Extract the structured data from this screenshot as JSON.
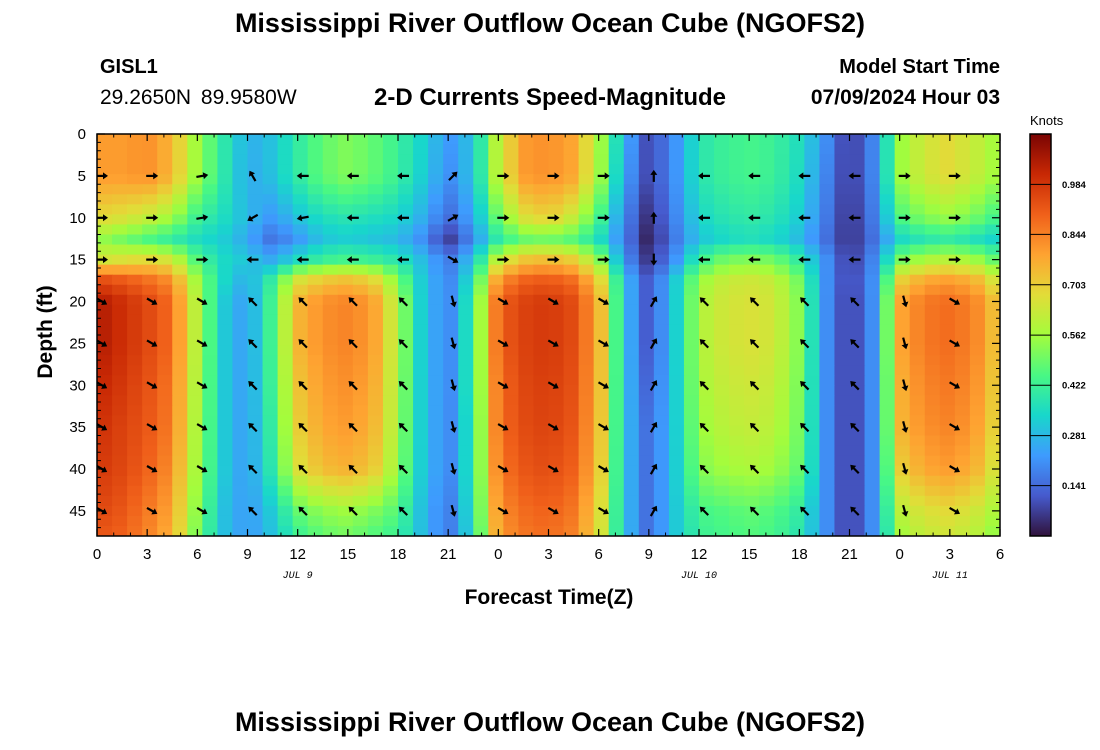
{
  "header": {
    "title": "Mississippi River Outflow Ocean Cube (NGOFS2)",
    "station_id": "GISL1",
    "station_coords": "29.2650N  89.9580W",
    "subtitle": "2-D Currents Speed-Magnitude",
    "model_start_label": "Model Start Time",
    "model_start_value": "07/09/2024 Hour 03"
  },
  "footer": {
    "title": "Mississippi River Outflow Ocean Cube (NGOFS2)"
  },
  "chart_data": {
    "type": "heatmap",
    "xlabel": "Forecast Time(Z)",
    "ylabel": "Depth (ft)",
    "xlim": [
      0,
      54
    ],
    "ylim": [
      0,
      48
    ],
    "y_inverted": true,
    "x_tick_positions": [
      0,
      3,
      6,
      9,
      12,
      15,
      18,
      21,
      24,
      27,
      30,
      33,
      36,
      39,
      42,
      45,
      48,
      51,
      54
    ],
    "x_tick_labels": [
      "0",
      "3",
      "6",
      "9",
      "12",
      "15",
      "18",
      "21",
      "0",
      "3",
      "6",
      "9",
      "12",
      "15",
      "18",
      "21",
      "0",
      "3",
      "6"
    ],
    "y_tick_values": [
      0,
      5,
      10,
      15,
      20,
      25,
      30,
      35,
      40,
      45
    ],
    "y_tick_labels": [
      "0",
      "5",
      "10",
      "15",
      "20",
      "25",
      "30",
      "35",
      "40",
      "45"
    ],
    "date_labels": [
      {
        "x": 12,
        "text": "JUL 9"
      },
      {
        "x": 36,
        "text": "JUL 10"
      },
      {
        "x": 51,
        "text": "JUL 11"
      }
    ],
    "colorbar": {
      "unit": "Knots",
      "min": 0.0,
      "max": 1.125,
      "tick_values": [
        0.141,
        0.281,
        0.422,
        0.562,
        0.703,
        0.844,
        0.984
      ],
      "tick_labels": [
        "0.141",
        "0.281",
        "0.422",
        "0.562",
        "0.703",
        "0.844",
        "0.984"
      ],
      "colormap": "turbo"
    },
    "speed_grid": {
      "time_hours": [
        0,
        1.5,
        3,
        4.5,
        6,
        7.5,
        9,
        10.5,
        12,
        13.5,
        15,
        16.5,
        18,
        19.5,
        21,
        22.5,
        24,
        25.5,
        27,
        28.5,
        30,
        31.5,
        33,
        34.5,
        36,
        37.5,
        39,
        40.5,
        42,
        43.5,
        45,
        46.5,
        48,
        49.5,
        51,
        52.5,
        54
      ],
      "depth_ft": [
        0,
        5,
        10,
        12.5,
        15,
        17.5,
        20,
        25,
        30,
        35,
        40,
        45,
        48
      ],
      "speed_knots": [
        [
          0.8,
          0.8,
          0.82,
          0.75,
          0.55,
          0.4,
          0.26,
          0.3,
          0.4,
          0.48,
          0.52,
          0.48,
          0.42,
          0.33,
          0.22,
          0.3,
          0.62,
          0.8,
          0.82,
          0.78,
          0.58,
          0.28,
          0.08,
          0.2,
          0.38,
          0.42,
          0.44,
          0.42,
          0.36,
          0.22,
          0.05,
          0.2,
          0.55,
          0.64,
          0.68,
          0.62,
          0.55
        ],
        [
          0.8,
          0.8,
          0.82,
          0.75,
          0.55,
          0.4,
          0.25,
          0.3,
          0.4,
          0.48,
          0.52,
          0.48,
          0.42,
          0.32,
          0.2,
          0.3,
          0.62,
          0.8,
          0.82,
          0.78,
          0.58,
          0.25,
          0.08,
          0.2,
          0.38,
          0.42,
          0.44,
          0.42,
          0.35,
          0.2,
          0.05,
          0.2,
          0.55,
          0.64,
          0.68,
          0.62,
          0.55
        ],
        [
          0.68,
          0.66,
          0.62,
          0.56,
          0.42,
          0.36,
          0.28,
          0.22,
          0.3,
          0.36,
          0.38,
          0.36,
          0.34,
          0.26,
          0.14,
          0.25,
          0.5,
          0.66,
          0.7,
          0.62,
          0.45,
          0.2,
          0.04,
          0.18,
          0.34,
          0.38,
          0.4,
          0.38,
          0.32,
          0.18,
          0.04,
          0.18,
          0.45,
          0.52,
          0.55,
          0.5,
          0.42
        ],
        [
          0.55,
          0.5,
          0.45,
          0.4,
          0.35,
          0.32,
          0.25,
          0.15,
          0.22,
          0.3,
          0.32,
          0.3,
          0.28,
          0.2,
          0.06,
          0.2,
          0.4,
          0.48,
          0.5,
          0.46,
          0.36,
          0.18,
          0.02,
          0.16,
          0.3,
          0.34,
          0.36,
          0.34,
          0.28,
          0.16,
          0.04,
          0.16,
          0.34,
          0.38,
          0.4,
          0.36,
          0.32
        ],
        [
          0.64,
          0.66,
          0.68,
          0.64,
          0.45,
          0.35,
          0.3,
          0.25,
          0.35,
          0.42,
          0.44,
          0.42,
          0.38,
          0.28,
          0.16,
          0.3,
          0.62,
          0.72,
          0.74,
          0.7,
          0.55,
          0.22,
          0.05,
          0.2,
          0.42,
          0.5,
          0.52,
          0.5,
          0.4,
          0.22,
          0.05,
          0.2,
          0.5,
          0.58,
          0.6,
          0.56,
          0.46
        ],
        [
          0.95,
          0.92,
          0.88,
          0.82,
          0.55,
          0.35,
          0.25,
          0.42,
          0.66,
          0.72,
          0.74,
          0.7,
          0.52,
          0.3,
          0.18,
          0.38,
          0.82,
          0.9,
          0.92,
          0.88,
          0.72,
          0.3,
          0.1,
          0.3,
          0.55,
          0.62,
          0.64,
          0.62,
          0.5,
          0.22,
          0.06,
          0.22,
          0.7,
          0.78,
          0.8,
          0.76,
          0.62
        ],
        [
          1.05,
          1.0,
          0.95,
          0.88,
          0.58,
          0.32,
          0.22,
          0.45,
          0.75,
          0.82,
          0.84,
          0.8,
          0.58,
          0.3,
          0.18,
          0.42,
          0.9,
          0.96,
          0.98,
          0.94,
          0.78,
          0.3,
          0.1,
          0.3,
          0.58,
          0.64,
          0.66,
          0.64,
          0.52,
          0.22,
          0.05,
          0.22,
          0.78,
          0.86,
          0.88,
          0.84,
          0.7
        ],
        [
          1.05,
          1.0,
          0.95,
          0.88,
          0.58,
          0.32,
          0.22,
          0.45,
          0.75,
          0.82,
          0.84,
          0.8,
          0.58,
          0.3,
          0.18,
          0.42,
          0.9,
          0.96,
          0.98,
          0.94,
          0.78,
          0.3,
          0.1,
          0.3,
          0.58,
          0.64,
          0.66,
          0.64,
          0.52,
          0.22,
          0.05,
          0.22,
          0.78,
          0.86,
          0.88,
          0.84,
          0.7
        ],
        [
          1.02,
          0.98,
          0.93,
          0.86,
          0.57,
          0.32,
          0.22,
          0.44,
          0.72,
          0.8,
          0.82,
          0.78,
          0.57,
          0.3,
          0.18,
          0.42,
          0.88,
          0.95,
          0.97,
          0.93,
          0.77,
          0.3,
          0.12,
          0.3,
          0.57,
          0.62,
          0.64,
          0.62,
          0.51,
          0.22,
          0.05,
          0.22,
          0.76,
          0.84,
          0.86,
          0.82,
          0.68
        ],
        [
          1.0,
          0.96,
          0.92,
          0.85,
          0.56,
          0.32,
          0.22,
          0.42,
          0.7,
          0.78,
          0.8,
          0.76,
          0.56,
          0.3,
          0.18,
          0.4,
          0.88,
          0.94,
          0.96,
          0.92,
          0.76,
          0.3,
          0.14,
          0.3,
          0.55,
          0.6,
          0.62,
          0.6,
          0.5,
          0.22,
          0.05,
          0.22,
          0.75,
          0.82,
          0.84,
          0.8,
          0.66
        ],
        [
          0.98,
          0.95,
          0.9,
          0.82,
          0.55,
          0.32,
          0.22,
          0.4,
          0.66,
          0.74,
          0.76,
          0.72,
          0.54,
          0.3,
          0.18,
          0.4,
          0.86,
          0.92,
          0.94,
          0.9,
          0.74,
          0.3,
          0.14,
          0.3,
          0.52,
          0.56,
          0.58,
          0.56,
          0.48,
          0.22,
          0.05,
          0.22,
          0.7,
          0.78,
          0.8,
          0.76,
          0.62
        ],
        [
          0.95,
          0.92,
          0.86,
          0.78,
          0.52,
          0.3,
          0.22,
          0.32,
          0.48,
          0.54,
          0.56,
          0.52,
          0.46,
          0.28,
          0.16,
          0.38,
          0.82,
          0.88,
          0.9,
          0.86,
          0.7,
          0.3,
          0.14,
          0.3,
          0.44,
          0.46,
          0.48,
          0.46,
          0.4,
          0.22,
          0.05,
          0.22,
          0.6,
          0.66,
          0.68,
          0.64,
          0.56
        ],
        [
          0.92,
          0.9,
          0.84,
          0.76,
          0.5,
          0.3,
          0.22,
          0.3,
          0.42,
          0.48,
          0.5,
          0.46,
          0.42,
          0.28,
          0.16,
          0.36,
          0.8,
          0.86,
          0.88,
          0.84,
          0.68,
          0.3,
          0.14,
          0.3,
          0.42,
          0.44,
          0.46,
          0.44,
          0.38,
          0.22,
          0.05,
          0.22,
          0.56,
          0.62,
          0.64,
          0.6,
          0.52
        ]
      ]
    },
    "current_vectors": {
      "time_hours": [
        0,
        3,
        6,
        9,
        12,
        15,
        18,
        21,
        24,
        27,
        30,
        33,
        36,
        39,
        42,
        45,
        48,
        51,
        54
      ],
      "depth_ft": [
        5,
        10,
        15,
        20,
        25,
        30,
        35,
        40,
        45
      ],
      "direction_deg": [
        [
          0,
          0,
          0,
          null
        ],
        [
          3,
          0,
          0,
          null
        ],
        [
          6,
          0,
          -10,
          null
        ],
        [
          9,
          0,
          -120,
          null
        ],
        [
          12,
          0,
          180,
          null
        ],
        [
          15,
          0,
          180,
          null
        ],
        [
          18,
          0,
          180,
          null
        ],
        [
          21,
          0,
          -45,
          null
        ],
        [
          24,
          0,
          0,
          null
        ],
        [
          27,
          0,
          0,
          null
        ],
        [
          30,
          0,
          0,
          null
        ],
        [
          33,
          0,
          -90,
          null
        ],
        [
          36,
          0,
          180,
          null
        ],
        [
          39,
          0,
          180,
          null
        ],
        [
          42,
          0,
          180,
          null
        ],
        [
          45,
          0,
          180,
          null
        ],
        [
          48,
          0,
          0,
          null
        ],
        [
          51,
          0,
          0,
          null
        ],
        [
          0,
          1,
          0,
          null
        ],
        [
          3,
          1,
          0,
          null
        ],
        [
          6,
          1,
          -10,
          null
        ],
        [
          9,
          1,
          150,
          null
        ],
        [
          12,
          1,
          170,
          null
        ],
        [
          15,
          1,
          180,
          null
        ],
        [
          18,
          1,
          180,
          null
        ],
        [
          21,
          1,
          -30,
          null
        ],
        [
          24,
          1,
          0,
          null
        ],
        [
          27,
          1,
          0,
          null
        ],
        [
          30,
          1,
          0,
          null
        ],
        [
          33,
          1,
          -90,
          null
        ],
        [
          36,
          1,
          180,
          null
        ],
        [
          39,
          1,
          180,
          null
        ],
        [
          42,
          1,
          180,
          null
        ],
        [
          45,
          1,
          180,
          null
        ],
        [
          48,
          1,
          0,
          null
        ],
        [
          51,
          1,
          0,
          null
        ],
        [
          0,
          2,
          0,
          null
        ],
        [
          3,
          2,
          0,
          null
        ],
        [
          6,
          2,
          0,
          null
        ],
        [
          9,
          2,
          180,
          null
        ],
        [
          12,
          2,
          180,
          null
        ],
        [
          15,
          2,
          180,
          null
        ],
        [
          18,
          2,
          180,
          null
        ],
        [
          21,
          2,
          30,
          null
        ],
        [
          24,
          2,
          0,
          null
        ],
        [
          27,
          2,
          0,
          null
        ],
        [
          30,
          2,
          0,
          null
        ],
        [
          33,
          2,
          90,
          null
        ],
        [
          36,
          2,
          180,
          null
        ],
        [
          39,
          2,
          180,
          null
        ],
        [
          42,
          2,
          180,
          null
        ],
        [
          45,
          2,
          180,
          null
        ],
        [
          48,
          2,
          0,
          null
        ],
        [
          51,
          2,
          0,
          null
        ]
      ],
      "lower_layer_direction_deg": {
        "t0": 30,
        "t3": 30,
        "t6": 30,
        "t9": -135,
        "t12": -135,
        "t15": -135,
        "t18": -135,
        "t21": 75,
        "t24": 30,
        "t27": 30,
        "t30": 30,
        "t33": -60,
        "t36": -135,
        "t39": -135,
        "t42": -135,
        "t45": -135,
        "t48": 75,
        "t51": 30
      }
    }
  }
}
